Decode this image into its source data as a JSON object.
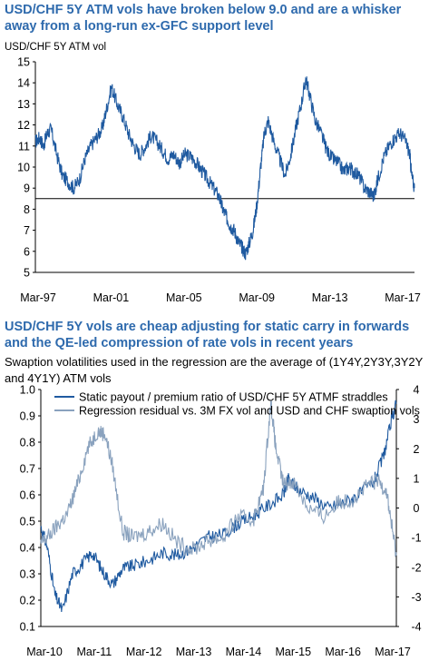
{
  "chart_data": [
    {
      "type": "line",
      "title": "USD/CHF 5Y ATM vols have broken below 9.0 and are a whisker away from a long-run ex-GFC support level",
      "ylabel": "USD/CHF 5Y ATM vol",
      "xlabel": "",
      "ylim": [
        5,
        15
      ],
      "yticks": [
        5,
        6,
        7,
        8,
        9,
        10,
        11,
        12,
        13,
        14,
        15
      ],
      "x_tick_labels": [
        "Mar-97",
        "Mar-01",
        "Mar-05",
        "Mar-09",
        "Mar-13",
        "Mar-17"
      ],
      "x_range": [
        1997.17,
        2017.25
      ],
      "support_level": 8.5,
      "series": [
        {
          "color": "#1f5aa0",
          "x": [
            1997.17,
            1997.4,
            1997.6,
            1997.8,
            1998.0,
            1998.3,
            1998.6,
            1998.9,
            1999.2,
            1999.5,
            1999.8,
            2000.1,
            2000.4,
            2000.7,
            2000.9,
            2001.2,
            2001.5,
            2001.8,
            2002.1,
            2002.4,
            2002.7,
            2003.0,
            2003.3,
            2003.6,
            2003.9,
            2004.2,
            2004.5,
            2004.8,
            2005.1,
            2005.4,
            2005.7,
            2006.0,
            2006.3,
            2006.6,
            2006.9,
            2007.1,
            2007.3,
            2007.5,
            2007.7,
            2007.9,
            2008.1,
            2008.3,
            2008.5,
            2008.7,
            2008.9,
            2009.1,
            2009.3,
            2009.5,
            2009.8,
            2010.1,
            2010.4,
            2010.7,
            2011.0,
            2011.3,
            2011.5,
            2011.7,
            2012.0,
            2012.3,
            2012.6,
            2012.9,
            2013.2,
            2013.5,
            2013.8,
            2014.0,
            2014.3,
            2014.6,
            2014.9,
            2015.1,
            2015.3,
            2015.6,
            2015.9,
            2016.2,
            2016.5,
            2016.8,
            2017.0,
            2017.1,
            2017.25
          ],
          "y": [
            11.2,
            11.4,
            11.0,
            11.6,
            11.8,
            10.6,
            9.6,
            9.3,
            9.0,
            9.4,
            10.4,
            11.0,
            11.4,
            11.8,
            12.6,
            13.8,
            13.0,
            12.4,
            11.6,
            11.0,
            10.6,
            11.0,
            11.5,
            11.2,
            10.8,
            10.4,
            10.6,
            10.2,
            10.6,
            10.5,
            10.2,
            9.8,
            9.4,
            9.0,
            8.6,
            8.0,
            7.6,
            7.2,
            7.0,
            6.5,
            6.2,
            5.9,
            6.4,
            7.0,
            8.2,
            10.0,
            11.6,
            12.2,
            11.2,
            10.4,
            9.6,
            10.6,
            12.0,
            13.2,
            14.2,
            13.4,
            12.2,
            11.6,
            10.8,
            10.4,
            10.2,
            9.8,
            10.0,
            9.8,
            9.6,
            9.0,
            8.8,
            8.6,
            9.4,
            10.4,
            11.0,
            11.4,
            11.6,
            11.2,
            10.6,
            9.6,
            9.0
          ]
        }
      ]
    },
    {
      "type": "line",
      "title": "USD/CHF 5Y vols are cheap adjusting for static carry in forwards and the QE-led compression of rate vols in recent years",
      "subtitle": "Swaption volatilities used in the regression are the average of (1Y4Y,2Y3Y,3Y2Y and 4Y1Y) ATM vols",
      "xlabel": "",
      "ylabel": "",
      "ylim": [
        0.1,
        1.0
      ],
      "yticks": [
        0.1,
        0.2,
        0.3,
        0.4,
        0.5,
        0.6,
        0.7,
        0.8,
        0.9,
        1.0
      ],
      "ylim_right": [
        -4,
        4
      ],
      "yticks_right": [
        -4,
        -3,
        -2,
        -1,
        0,
        1,
        2,
        3,
        4
      ],
      "x_tick_labels": [
        "Mar-10",
        "Mar-11",
        "Mar-12",
        "Mar-13",
        "Mar-14",
        "Mar-15",
        "Mar-16",
        "Mar-17"
      ],
      "x_range": [
        2010.17,
        2017.25
      ],
      "series": [
        {
          "name": "Static payout / premium ratio of USD/CHF 5Y ATMF straddles",
          "axis": "left",
          "color": "#1f5aa0",
          "x": [
            2010.17,
            2010.3,
            2010.45,
            2010.6,
            2010.8,
            2011.0,
            2011.2,
            2011.4,
            2011.6,
            2011.8,
            2012.0,
            2012.3,
            2012.6,
            2012.9,
            2013.2,
            2013.5,
            2013.8,
            2014.1,
            2014.4,
            2014.7,
            2015.0,
            2015.1,
            2015.3,
            2015.6,
            2015.9,
            2016.2,
            2016.5,
            2016.8,
            2017.0,
            2017.15,
            2017.25
          ],
          "y": [
            0.48,
            0.4,
            0.22,
            0.16,
            0.3,
            0.34,
            0.38,
            0.31,
            0.26,
            0.32,
            0.33,
            0.35,
            0.38,
            0.37,
            0.4,
            0.44,
            0.45,
            0.49,
            0.52,
            0.56,
            0.6,
            0.66,
            0.62,
            0.59,
            0.55,
            0.57,
            0.6,
            0.65,
            0.75,
            0.88,
            0.95
          ]
        },
        {
          "name": "Regression residual vs. 3M FX vol and USD and CHF swaption vols",
          "axis": "right",
          "color": "#8aa2be",
          "x": [
            2010.17,
            2010.3,
            2010.5,
            2010.7,
            2010.9,
            2011.1,
            2011.3,
            2011.45,
            2011.6,
            2011.8,
            2012.0,
            2012.3,
            2012.6,
            2012.9,
            2013.2,
            2013.5,
            2013.8,
            2014.1,
            2014.4,
            2014.6,
            2014.75,
            2014.85,
            2015.0,
            2015.2,
            2015.5,
            2015.8,
            2016.1,
            2016.4,
            2016.7,
            2016.9,
            2017.05,
            2017.15,
            2017.25
          ],
          "y": [
            -1.2,
            -1.0,
            -0.6,
            -0.2,
            0.8,
            2.0,
            2.6,
            2.5,
            1.4,
            -0.8,
            -1.0,
            -0.8,
            -0.5,
            -1.2,
            -1.4,
            -1.1,
            -1.0,
            -0.3,
            -0.4,
            0.6,
            3.6,
            2.0,
            0.8,
            0.9,
            0.0,
            -0.3,
            0.2,
            0.3,
            0.8,
            0.9,
            0.6,
            -0.5,
            -1.6
          ]
        }
      ]
    }
  ]
}
